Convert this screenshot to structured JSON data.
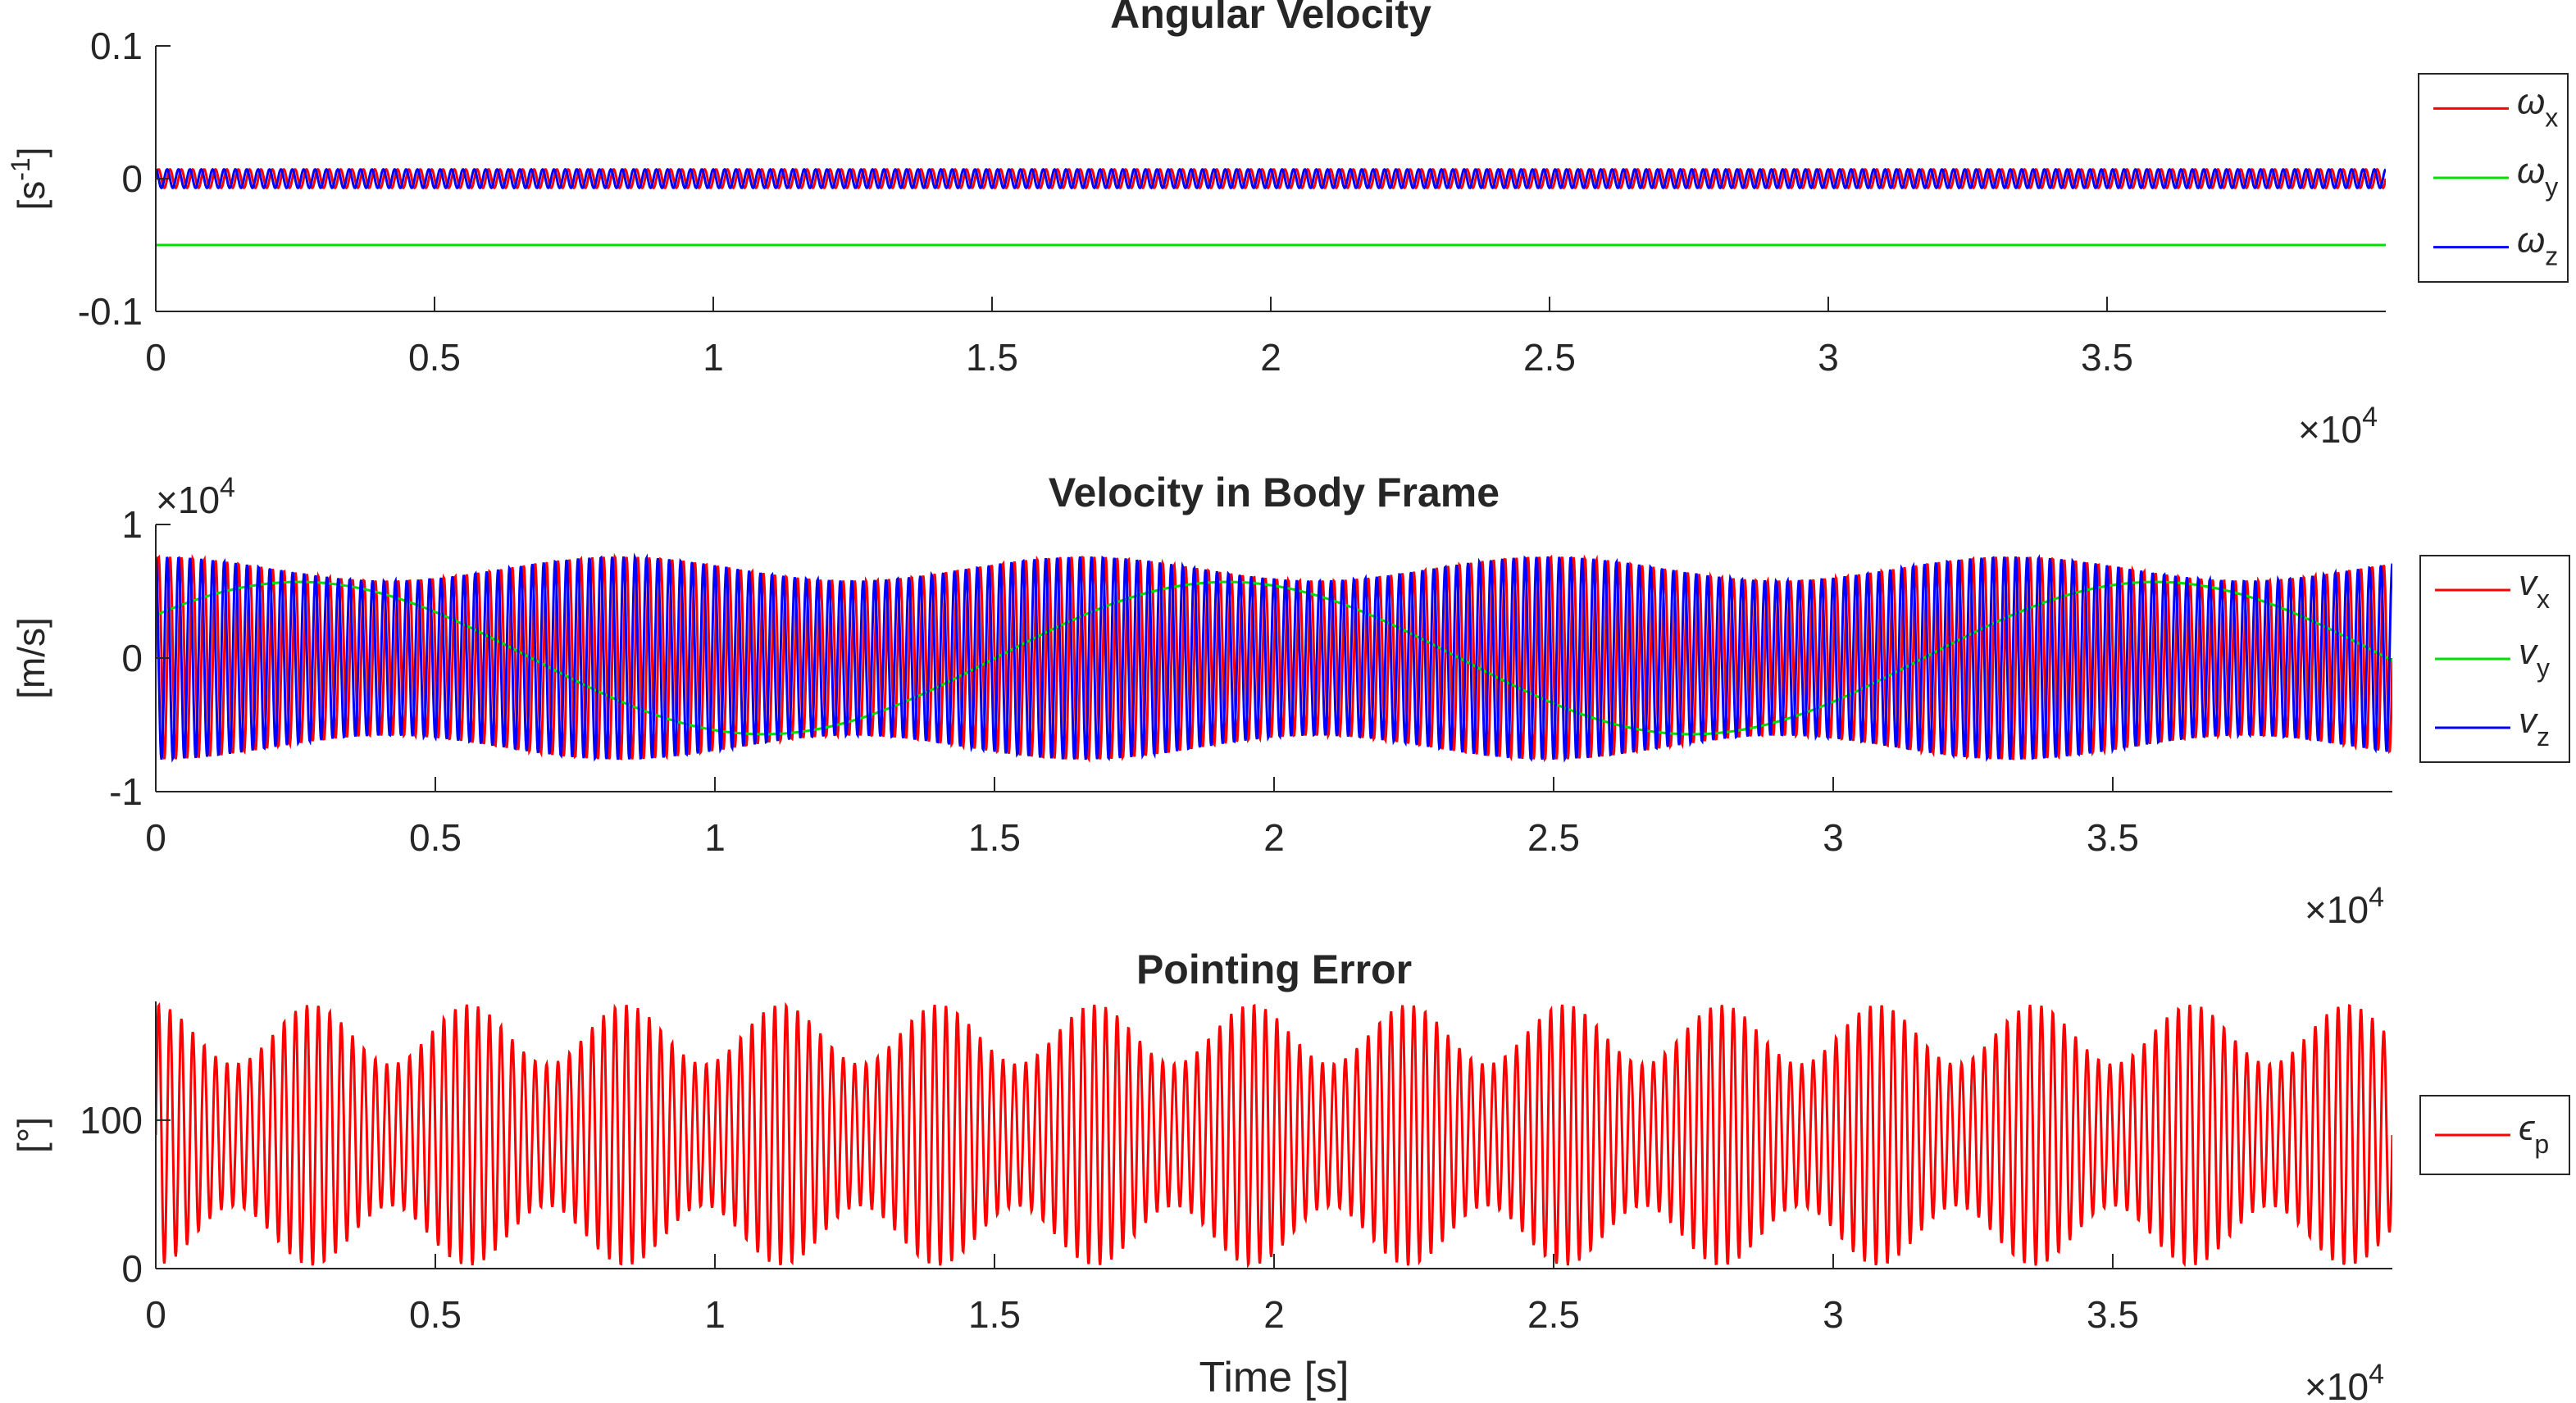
{
  "chart_data": [
    {
      "type": "line",
      "title": "Angular Velocity",
      "xlabel": "",
      "ylabel": "[s-1]",
      "ylabel_base": "[s",
      "ylabel_sup": "-1",
      "ylabel_end": "]",
      "x_multiplier": "×10",
      "x_multiplier_exp": "4",
      "y_multiplier": "",
      "y_multiplier_exp": "",
      "xlim": [
        0,
        40000
      ],
      "ylim": [
        -0.1,
        0.1
      ],
      "x_ticks": [
        0,
        5000,
        10000,
        15000,
        20000,
        25000,
        30000,
        35000
      ],
      "x_tick_labels": [
        "0",
        "0.5",
        "1",
        "1.5",
        "2",
        "2.5",
        "3",
        "3.5"
      ],
      "y_ticks": [
        -0.1,
        0,
        0.1
      ],
      "y_tick_labels": [
        "-0.1",
        "0",
        "0.1"
      ],
      "grid": false,
      "legend_position": "right",
      "series": [
        {
          "name": "ωx",
          "legend_main": "ω",
          "legend_sub": "x",
          "color": "#ff0000",
          "shape": "oscillation",
          "center": 0,
          "amplitude": 0.007,
          "amplitude_mod": 0,
          "cycles": 196
        },
        {
          "name": "ωy",
          "legend_main": "ω",
          "legend_sub": "y",
          "color": "#00e000",
          "shape": "constant",
          "value": -0.05
        },
        {
          "name": "ωz",
          "legend_main": "ω",
          "legend_sub": "z",
          "color": "#0000ff",
          "shape": "oscillation",
          "center": 0,
          "amplitude": 0.007,
          "amplitude_mod": 0,
          "cycles": 196,
          "phase": 1.5708
        }
      ]
    },
    {
      "type": "line",
      "title": "Velocity in Body Frame",
      "xlabel": "",
      "ylabel": "[m/s]",
      "ylabel_base": "[m/s]",
      "ylabel_sup": "",
      "ylabel_end": "",
      "x_multiplier": "×10",
      "x_multiplier_exp": "4",
      "y_multiplier": "×10",
      "y_multiplier_exp": "4",
      "xlim": [
        0,
        40000
      ],
      "ylim": [
        -10000,
        10000
      ],
      "x_ticks": [
        0,
        5000,
        10000,
        15000,
        20000,
        25000,
        30000,
        35000
      ],
      "x_tick_labels": [
        "0",
        "0.5",
        "1",
        "1.5",
        "2",
        "2.5",
        "3",
        "3.5"
      ],
      "y_ticks": [
        -10000,
        0,
        10000
      ],
      "y_tick_labels": [
        "-1",
        "0",
        "1"
      ],
      "grid": false,
      "legend_position": "right",
      "series": [
        {
          "name": "vx",
          "legend_main": "v",
          "legend_sub": "x",
          "color": "#ff0000",
          "shape": "modulated",
          "center": 0,
          "amplitude": 6700,
          "amplitude_mod": 900,
          "mod_period": 8300,
          "cycles": 196
        },
        {
          "name": "vy",
          "legend_main": "v",
          "legend_sub": "y",
          "color": "#00e000",
          "shape": "slow",
          "center": 0,
          "amplitude": 5700,
          "period": 16600
        },
        {
          "name": "vz",
          "legend_main": "v",
          "legend_sub": "z",
          "color": "#0000ff",
          "shape": "modulated",
          "center": 0,
          "amplitude": 6700,
          "amplitude_mod": 900,
          "mod_period": 8300,
          "cycles": 196,
          "phase": 1.5708
        }
      ]
    },
    {
      "type": "line",
      "title": "Pointing Error",
      "xlabel": "Time [s]",
      "ylabel": "[°]",
      "ylabel_base": "[°]",
      "ylabel_sup": "",
      "ylabel_end": "",
      "x_multiplier": "×10",
      "x_multiplier_exp": "4",
      "y_multiplier": "",
      "y_multiplier_exp": "",
      "xlim": [
        0,
        40000
      ],
      "ylim": [
        0,
        180
      ],
      "x_ticks": [
        0,
        5000,
        10000,
        15000,
        20000,
        25000,
        30000,
        35000
      ],
      "x_tick_labels": [
        "0",
        "0.5",
        "1",
        "1.5",
        "2",
        "2.5",
        "3",
        "3.5"
      ],
      "y_ticks": [
        0,
        100
      ],
      "y_tick_labels": [
        "0",
        "100"
      ],
      "grid": false,
      "legend_position": "right",
      "series": [
        {
          "name": "ϵp",
          "legend_main": "ϵ",
          "legend_sub": "p",
          "color": "#ff0000",
          "shape": "modulated",
          "center": 90,
          "amplitude": 68,
          "amplitude_mod": 20,
          "mod_period": 2800,
          "cycles": 196
        }
      ]
    }
  ]
}
